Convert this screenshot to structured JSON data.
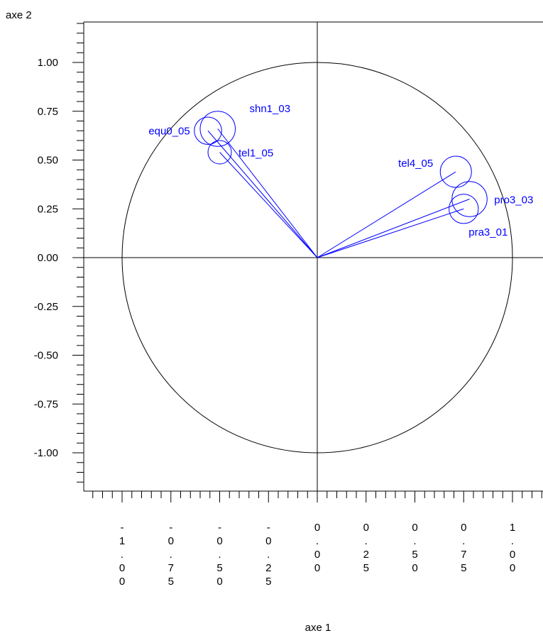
{
  "chart_data": {
    "type": "correlation-circle",
    "xlabel": "axe 1",
    "ylabel": "axe 2",
    "xlim": [
      -1.2,
      1.2
    ],
    "ylim": [
      -1.2,
      1.2
    ],
    "circle_radius": 1.0,
    "grid": false,
    "y_ticks": [
      {
        "value": 1.0,
        "label": "1.00"
      },
      {
        "value": 0.75,
        "label": "0.75"
      },
      {
        "value": 0.5,
        "label": "0.50"
      },
      {
        "value": 0.25,
        "label": "0.25"
      },
      {
        "value": 0.0,
        "label": "0.00"
      },
      {
        "value": -0.25,
        "label": "-0.25"
      },
      {
        "value": -0.5,
        "label": "-0.50"
      },
      {
        "value": -0.75,
        "label": "-0.75"
      },
      {
        "value": -1.0,
        "label": "-1.00"
      }
    ],
    "x_ticks": [
      {
        "value": -1.0,
        "label": "-1.00"
      },
      {
        "value": -0.75,
        "label": "-0.75"
      },
      {
        "value": -0.5,
        "label": "-0.50"
      },
      {
        "value": -0.25,
        "label": "-0.25"
      },
      {
        "value": 0.0,
        "label": "0.00"
      },
      {
        "value": 0.25,
        "label": "0.25"
      },
      {
        "value": 0.5,
        "label": "0.50"
      },
      {
        "value": 0.75,
        "label": "0.75"
      },
      {
        "value": 1.0,
        "label": "1.00"
      }
    ],
    "points": [
      {
        "name": "shn1_03",
        "x": -0.51,
        "y": 0.66,
        "label_pos": "upper-right",
        "circle_r": 0.09
      },
      {
        "name": "equ0_05",
        "x": -0.56,
        "y": 0.65,
        "label_pos": "left",
        "circle_r": 0.07
      },
      {
        "name": "tel1_05",
        "x": -0.5,
        "y": 0.54,
        "label_pos": "right",
        "circle_r": 0.06
      },
      {
        "name": "tel4_05",
        "x": 0.71,
        "y": 0.44,
        "label_pos": "upper-left",
        "circle_r": 0.08
      },
      {
        "name": "pro3_03",
        "x": 0.78,
        "y": 0.3,
        "label_pos": "right",
        "circle_r": 0.09
      },
      {
        "name": "pra3_01",
        "x": 0.75,
        "y": 0.25,
        "label_pos": "lower-right",
        "circle_r": 0.075
      }
    ],
    "colors": {
      "variables": "#0000ff",
      "axes": "#000000"
    }
  }
}
